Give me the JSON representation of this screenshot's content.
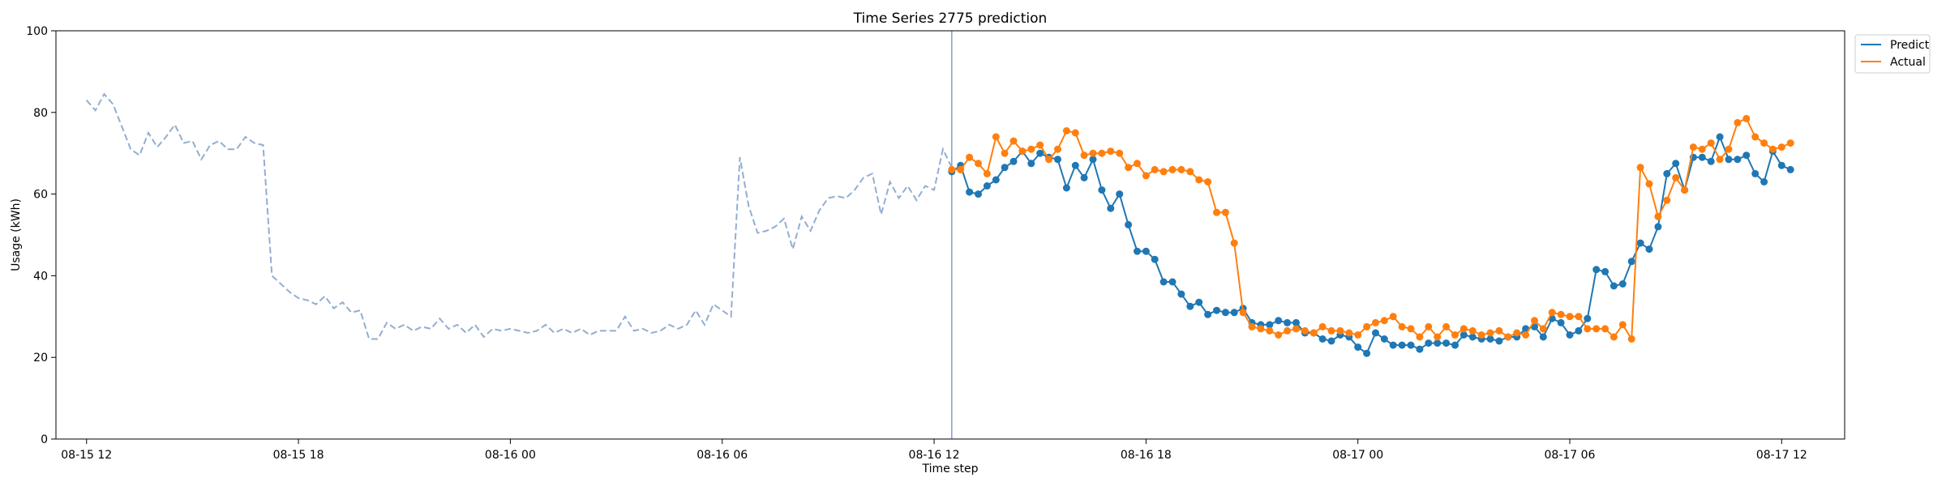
{
  "chart_data": {
    "type": "line",
    "title": "Time Series 2775 prediction",
    "xlabel": "Time step",
    "ylabel": "Usage (kWh)",
    "ylim": [
      0,
      100
    ],
    "xlim": [
      "2024-08-15 11:08",
      "2024-08-17 13:47"
    ],
    "yticks": [
      0,
      20,
      40,
      60,
      80,
      100
    ],
    "xticks": [
      {
        "t": "2024-08-15 12:00",
        "label": "08-15 12"
      },
      {
        "t": "2024-08-15 18:00",
        "label": "08-15 18"
      },
      {
        "t": "2024-08-16 00:00",
        "label": "08-16 00"
      },
      {
        "t": "2024-08-16 06:00",
        "label": "08-16 06"
      },
      {
        "t": "2024-08-16 12:00",
        "label": "08-16 12"
      },
      {
        "t": "2024-08-16 18:00",
        "label": "08-16 18"
      },
      {
        "t": "2024-08-17 00:00",
        "label": "08-17 00"
      },
      {
        "t": "2024-08-17 06:00",
        "label": "08-17 06"
      },
      {
        "t": "2024-08-17 12:00",
        "label": "08-17 12"
      }
    ],
    "grid": false,
    "legend_position": "outside top-right",
    "split_time": "2024-08-16 12:30",
    "colors": {
      "history": "#92aed1",
      "predict": "#1f77b4",
      "actual": "#ff7f0e",
      "split_line": "#7f9fce"
    },
    "history": {
      "start": "2024-08-15 12:00",
      "step_minutes": 15,
      "style": "dashed",
      "values": [
        83,
        80.5,
        84.5,
        82,
        76.5,
        71,
        69.5,
        75,
        71.5,
        74,
        77,
        72.5,
        73,
        68.5,
        72,
        73,
        71,
        71,
        74,
        72.5,
        72,
        40,
        38,
        36,
        34.5,
        34,
        33,
        35,
        32,
        33.5,
        31,
        31.5,
        24.5,
        24.5,
        28.5,
        27,
        28,
        26.5,
        27.5,
        27,
        29.5,
        27,
        28,
        26,
        28,
        25,
        27,
        26.5,
        27,
        26.5,
        26,
        26.5,
        28,
        26,
        27,
        26,
        27,
        25.5,
        26.5,
        26.5,
        26.5,
        30,
        26.5,
        27,
        26,
        26.5,
        28,
        27,
        28,
        31.5,
        28,
        33,
        31.5,
        30,
        69,
        57,
        50.5,
        51,
        52,
        54,
        46.5,
        54.5,
        51,
        56,
        59,
        59.5,
        59,
        61,
        64,
        65,
        55,
        63,
        59,
        62,
        58.5,
        62,
        61,
        71,
        66.5
      ]
    },
    "series": [
      {
        "name": "Predict",
        "start": "2024-08-16 12:30",
        "step_minutes": 15,
        "values": [
          65.5,
          67,
          60.5,
          60,
          62,
          63.5,
          66.5,
          68,
          70.5,
          67.5,
          70,
          69,
          68.5,
          61.5,
          67,
          64,
          68.5,
          61,
          56.5,
          60,
          52.5,
          46,
          46,
          44,
          38.5,
          38.5,
          35.5,
          32.5,
          33.5,
          30.5,
          31.5,
          31,
          31,
          32,
          28.5,
          28,
          28,
          29,
          28.5,
          28.5,
          26,
          26,
          24.5,
          24,
          25.5,
          25,
          22.5,
          21,
          26,
          24.5,
          23,
          23,
          23,
          22,
          23.5,
          23.5,
          23.5,
          23,
          25.5,
          25,
          24.5,
          24.5,
          24,
          25,
          25,
          27,
          27.5,
          25,
          29.5,
          28.5,
          25.5,
          26.5,
          29.5,
          41.5,
          41,
          37.5,
          38,
          43.5,
          48,
          46.5,
          52,
          65,
          67.5,
          61,
          69,
          69,
          68,
          74,
          68.5,
          68.5,
          69.5,
          65,
          63,
          70.5,
          67,
          66
        ]
      },
      {
        "name": "Actual",
        "start": "2024-08-16 12:30",
        "step_minutes": 15,
        "values": [
          66,
          66,
          69,
          67.5,
          65,
          74,
          70,
          73,
          70.5,
          71,
          72,
          68.5,
          71,
          75.5,
          75,
          69.5,
          70,
          70,
          70.5,
          70,
          66.5,
          67.5,
          64.5,
          66,
          65.5,
          66,
          66,
          65.5,
          63.5,
          63,
          55.5,
          55.5,
          48,
          31,
          27.5,
          27,
          26.5,
          25.5,
          26.5,
          27,
          26.5,
          26,
          27.5,
          26.5,
          26.5,
          26,
          25.5,
          27.5,
          28.5,
          29,
          30,
          27.5,
          27,
          25,
          27.5,
          25,
          27.5,
          25.5,
          27,
          26.5,
          25.5,
          26,
          26.5,
          25,
          26,
          25.5,
          29,
          27,
          31,
          30.5,
          30,
          30,
          27,
          27,
          27,
          25,
          28,
          24.5,
          66.5,
          62.5,
          54.5,
          58.5,
          64,
          61,
          71.5,
          71,
          72.5,
          68.5,
          71,
          77.5,
          78.5,
          74,
          72.5,
          71,
          71.5,
          72.5
        ]
      }
    ]
  }
}
